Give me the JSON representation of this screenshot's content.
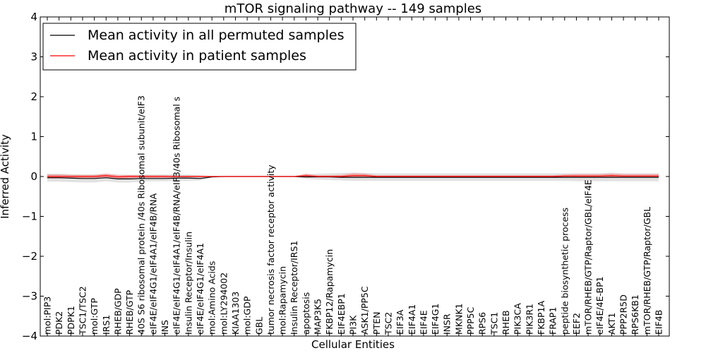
{
  "chart_data": {
    "type": "line",
    "title": "mTOR signaling pathway -- 149 samples",
    "xlabel": "Cellular Entities",
    "ylabel": "Inferred Activity",
    "ylim": [
      -4,
      4
    ],
    "yticks": [
      -4,
      -3,
      -2,
      -1,
      0,
      1,
      2,
      3,
      4
    ],
    "ytick_labels": [
      "−4",
      "−3",
      "−2",
      "−1",
      "0",
      "1",
      "2",
      "3",
      "4"
    ],
    "grid": false,
    "legend_position": "top-left",
    "categories": [
      "mol:PIP3",
      "PDK2",
      "PDPK1",
      "TSC1/TSC2",
      "mol:GTP",
      "IRS1",
      "RHEB/GDP",
      "RHEB/GTP",
      "40S S6 ribosomal protein /40s Ribosomal subunit/eIF3",
      "eIF4E/eIF4G1/eIF4A1/eIF4B/RNA",
      "INS",
      "eIF4E/eIF4G1/eIF4A1/eIF4B/RNA/eIF3/40s Ribosomal s",
      "Insulin Receptor/Insulin",
      "eIF4E/eIF4G1/eIF4A1",
      "mol:Amino Acids",
      "mol:LY294002",
      "KIAA1303",
      "mol:GDP",
      "GBL",
      "tumor necrosis factor receptor activity",
      "mol:Rapamycin",
      "Insulin Receptor/IRS1",
      "apoptosis",
      "MAP3K5",
      "FKBP12/Rapamycin",
      "EIF4EBP1",
      "PI3K",
      "ASK1/PP5C",
      "PTEN",
      "TSC2",
      "EIF3A",
      "EIF4A1",
      "EIF4E",
      "EIF4G1",
      "INSR",
      "MKNK1",
      "PPP5C",
      "RPS6",
      "TSC1",
      "RHEB",
      "PIK3CA",
      "PIK3R1",
      "FKBP1A",
      "FRAP1",
      "peptide biosynthetic process",
      "EEF2",
      "mTOR/RHEB/GTP/Raptor/GBL/eIF4E",
      "eIF4E/4E-BP1",
      "AKT1",
      "PPP2R5D",
      "RPS6KB1",
      "mTOR/RHEB/GTP/Raptor/GBL",
      "EIF4B"
    ],
    "series": [
      {
        "name": "Mean activity in all permuted samples",
        "color": "#000000",
        "values": [
          -0.03,
          -0.03,
          -0.04,
          -0.05,
          -0.05,
          -0.03,
          -0.06,
          -0.06,
          -0.05,
          -0.05,
          -0.05,
          -0.04,
          -0.04,
          -0.05,
          -0.01,
          0.0,
          0.0,
          0.0,
          0.0,
          0.0,
          0.0,
          0.0,
          -0.01,
          -0.01,
          -0.01,
          -0.02,
          -0.02,
          -0.02,
          -0.02,
          -0.02,
          -0.02,
          -0.02,
          -0.02,
          -0.02,
          -0.02,
          -0.02,
          -0.02,
          -0.02,
          -0.02,
          -0.02,
          -0.02,
          -0.02,
          -0.02,
          -0.02,
          -0.02,
          -0.02,
          -0.02,
          -0.02,
          -0.02,
          -0.02,
          -0.02,
          -0.02,
          -0.02
        ],
        "band_low": [
          -0.13,
          -0.13,
          -0.14,
          -0.15,
          -0.15,
          -0.12,
          -0.15,
          -0.15,
          -0.13,
          -0.12,
          -0.12,
          -0.11,
          -0.11,
          -0.1,
          -0.03,
          -0.01,
          0.0,
          0.0,
          0.0,
          0.0,
          0.0,
          -0.01,
          -0.06,
          -0.08,
          -0.09,
          -0.1,
          -0.11,
          -0.11,
          -0.11,
          -0.11,
          -0.11,
          -0.11,
          -0.11,
          -0.11,
          -0.11,
          -0.11,
          -0.11,
          -0.11,
          -0.11,
          -0.11,
          -0.11,
          -0.11,
          -0.11,
          -0.11,
          -0.11,
          -0.12,
          -0.12,
          -0.12,
          -0.12,
          -0.12,
          -0.12,
          -0.12,
          -0.12
        ],
        "band_high": [
          0.07,
          0.07,
          0.06,
          0.05,
          0.05,
          0.07,
          0.04,
          0.04,
          0.05,
          0.05,
          0.05,
          0.05,
          0.05,
          0.03,
          0.01,
          0.01,
          0.0,
          0.0,
          0.0,
          0.0,
          0.0,
          0.01,
          0.05,
          0.07,
          0.08,
          0.09,
          0.1,
          0.09,
          0.08,
          0.08,
          0.08,
          0.08,
          0.08,
          0.08,
          0.08,
          0.08,
          0.08,
          0.08,
          0.08,
          0.08,
          0.08,
          0.08,
          0.08,
          0.08,
          0.08,
          0.08,
          0.08,
          0.08,
          0.1,
          0.08,
          0.08,
          0.08,
          0.08
        ]
      },
      {
        "name": "Mean activity in patient samples",
        "color": "#ff0000",
        "values": [
          0.0,
          0.0,
          0.0,
          0.0,
          0.0,
          0.02,
          -0.01,
          0.0,
          0.0,
          0.0,
          0.0,
          0.0,
          0.0,
          0.0,
          0.0,
          0.0,
          0.0,
          0.0,
          0.0,
          0.0,
          0.0,
          0.0,
          0.02,
          0.0,
          0.0,
          0.0,
          0.02,
          0.02,
          0.0,
          0.0,
          0.0,
          0.0,
          0.0,
          0.0,
          0.0,
          0.0,
          0.0,
          0.0,
          0.0,
          0.0,
          0.0,
          0.0,
          0.0,
          0.0,
          0.01,
          0.01,
          0.01,
          0.01,
          0.02,
          0.01,
          0.01,
          0.01,
          0.01
        ],
        "band_low": [
          -0.05,
          -0.05,
          -0.04,
          -0.04,
          -0.04,
          -0.03,
          -0.06,
          -0.04,
          -0.03,
          -0.03,
          -0.03,
          -0.02,
          -0.02,
          -0.02,
          -0.01,
          0.0,
          0.0,
          0.0,
          0.0,
          0.0,
          0.0,
          -0.01,
          -0.03,
          -0.02,
          -0.02,
          -0.02,
          -0.02,
          -0.02,
          -0.02,
          -0.02,
          -0.02,
          -0.02,
          -0.02,
          -0.02,
          -0.02,
          -0.02,
          -0.02,
          -0.02,
          -0.02,
          -0.02,
          -0.02,
          -0.02,
          -0.02,
          -0.02,
          -0.02,
          -0.03,
          -0.03,
          -0.03,
          -0.03,
          -0.03,
          -0.03,
          -0.03,
          -0.03
        ],
        "band_high": [
          0.05,
          0.05,
          0.04,
          0.04,
          0.04,
          0.07,
          0.04,
          0.04,
          0.03,
          0.03,
          0.03,
          0.02,
          0.02,
          0.02,
          0.01,
          0.0,
          0.0,
          0.0,
          0.0,
          0.0,
          0.0,
          0.01,
          0.07,
          0.03,
          0.03,
          0.04,
          0.08,
          0.07,
          0.03,
          0.03,
          0.03,
          0.03,
          0.03,
          0.03,
          0.03,
          0.03,
          0.03,
          0.03,
          0.03,
          0.03,
          0.03,
          0.03,
          0.03,
          0.03,
          0.05,
          0.06,
          0.06,
          0.06,
          0.07,
          0.06,
          0.06,
          0.06,
          0.06
        ]
      }
    ]
  }
}
